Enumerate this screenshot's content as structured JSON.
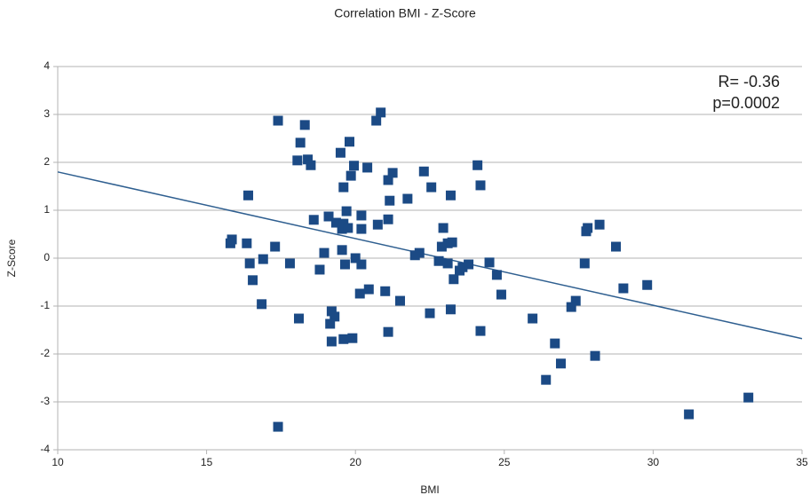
{
  "chart_data": {
    "type": "scatter",
    "title": "Correlation BMI - Z-Score",
    "x_label": "BMI",
    "y_label": "Z-Score",
    "annotations": [
      "R= -0.36",
      "p=0.0002"
    ],
    "color": "#1b4a85",
    "trendline": {
      "x": [
        10,
        35
      ],
      "y": [
        1.8,
        -1.68
      ],
      "color": "#2f5f90"
    },
    "x": [
      17.4,
      18.3,
      20.85,
      20.7,
      18.15,
      19.8,
      19.5,
      18.05,
      18.4,
      18.5,
      19.95,
      20.4,
      19.85,
      21.25,
      22.3,
      24.1,
      21.1,
      19.6,
      22.55,
      24.2,
      16.4,
      23.2,
      21.75,
      21.15,
      19.7,
      20.2,
      19.1,
      18.6,
      21.1,
      19.35,
      19.6,
      20.75,
      19.55,
      19.75,
      20.2,
      27.8,
      28.2,
      27.75,
      22.95,
      15.85,
      15.8,
      16.35,
      17.3,
      19.55,
      18.95,
      23.25,
      23.1,
      22.9,
      22.15,
      22.0,
      28.75,
      16.9,
      20.0,
      16.45,
      17.8,
      19.65,
      20.2,
      22.8,
      23.1,
      23.6,
      23.8,
      23.5,
      24.5,
      27.7,
      18.8,
      24.75,
      16.55,
      23.3,
      20.45,
      21.0,
      20.15,
      24.9,
      29.0,
      29.8,
      21.5,
      16.85,
      27.4,
      27.25,
      23.2,
      22.5,
      19.2,
      19.3,
      18.1,
      25.95,
      19.15,
      21.1,
      24.2,
      19.9,
      19.6,
      19.2,
      26.7,
      28.05,
      26.9,
      26.4,
      31.2,
      33.2,
      17.4
    ],
    "values": [
      2.87,
      2.78,
      3.04,
      2.87,
      2.41,
      2.43,
      2.2,
      2.04,
      2.06,
      1.94,
      1.93,
      1.89,
      1.72,
      1.78,
      1.81,
      1.94,
      1.63,
      1.48,
      1.48,
      1.52,
      1.31,
      1.31,
      1.24,
      1.2,
      0.98,
      0.89,
      0.87,
      0.8,
      0.81,
      0.74,
      0.72,
      0.7,
      0.61,
      0.63,
      0.61,
      0.63,
      0.7,
      0.56,
      0.63,
      0.39,
      0.31,
      0.31,
      0.24,
      0.17,
      0.11,
      0.33,
      0.31,
      0.24,
      0.11,
      0.06,
      0.24,
      -0.02,
      0.0,
      -0.11,
      -0.11,
      -0.13,
      -0.13,
      -0.06,
      -0.11,
      -0.19,
      -0.13,
      -0.26,
      -0.09,
      -0.11,
      -0.24,
      -0.35,
      -0.46,
      -0.44,
      -0.65,
      -0.69,
      -0.74,
      -0.76,
      -0.63,
      -0.56,
      -0.89,
      -0.96,
      -0.89,
      -1.02,
      -1.07,
      -1.15,
      -1.11,
      -1.22,
      -1.26,
      -1.26,
      -1.37,
      -1.54,
      -1.52,
      -1.67,
      -1.69,
      -1.74,
      -1.78,
      -2.04,
      -2.2,
      -2.54,
      -3.26,
      -2.91,
      -3.52
    ],
    "xlim": [
      10,
      35
    ],
    "xticks": [
      10,
      15,
      20,
      25,
      30,
      35
    ],
    "ylim": [
      -4,
      4
    ],
    "yticks": [
      -4,
      -3,
      -2,
      -1,
      0,
      1,
      2,
      3,
      4
    ],
    "grid": true
  }
}
